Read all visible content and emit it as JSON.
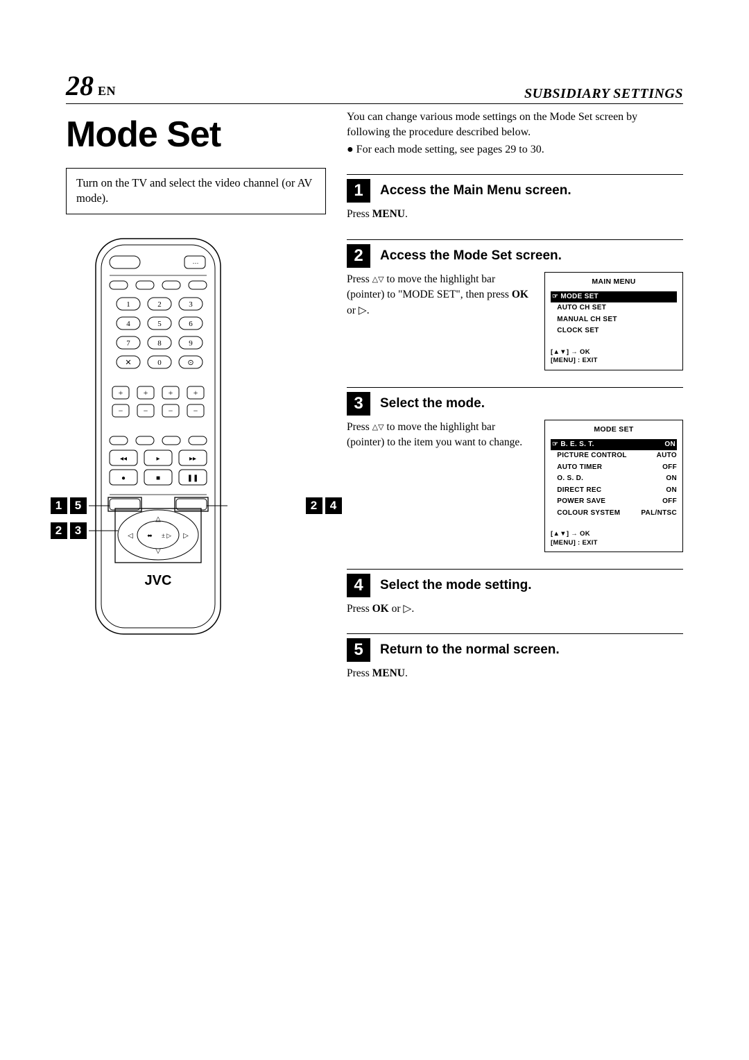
{
  "header": {
    "page_number": "28",
    "lang": "EN",
    "section": "SUBSIDIARY SETTINGS"
  },
  "title": "Mode Set",
  "note": "Turn on the TV and select the video channel (or AV mode).",
  "brand": "JVC",
  "remote": {
    "numpad": [
      "1",
      "2",
      "3",
      "4",
      "5",
      "6",
      "7",
      "8",
      "9",
      "✕",
      "0",
      "⊙"
    ],
    "plusminus": [
      "+",
      "+",
      "+",
      "+",
      "−",
      "−",
      "−",
      "−"
    ]
  },
  "callouts": {
    "left_top": [
      "1",
      "5"
    ],
    "left_bottom": [
      "2",
      "3"
    ],
    "right": [
      "2",
      "4"
    ]
  },
  "intro": {
    "line1": "You can change various mode settings on the Mode Set screen by following the procedure described below.",
    "bullet": "For each mode setting, see pages 29 to 30."
  },
  "steps": [
    {
      "num": "1",
      "title": "Access the Main Menu screen.",
      "body_before": "Press ",
      "body_bold": "MENU",
      "body_after": "."
    },
    {
      "num": "2",
      "title": "Access the Mode Set screen.",
      "text_parts": {
        "a": "Press ",
        "tri": "△▽",
        "b": " to move the highlight bar (pointer) to \"MODE SET\", then press ",
        "bold": "OK",
        "c": " or ▷."
      },
      "osd": {
        "title": "MAIN MENU",
        "rows": [
          {
            "label": "MODE SET",
            "value": "",
            "hl": true,
            "ptr": true
          },
          {
            "label": "AUTO CH SET",
            "value": ""
          },
          {
            "label": "MANUAL CH SET",
            "value": ""
          },
          {
            "label": "CLOCK SET",
            "value": ""
          }
        ],
        "footer": [
          "[▲▼] → OK",
          "[MENU] : EXIT"
        ]
      }
    },
    {
      "num": "3",
      "title": "Select the mode.",
      "text_parts": {
        "a": "Press ",
        "tri": "△▽",
        "b": " to move the highlight bar (pointer) to the item you want to change."
      },
      "osd": {
        "title": "MODE SET",
        "rows": [
          {
            "label": "B. E. S. T.",
            "value": "ON",
            "hl": true,
            "ptr": true
          },
          {
            "label": "PICTURE CONTROL",
            "value": "AUTO"
          },
          {
            "label": "AUTO TIMER",
            "value": "OFF"
          },
          {
            "label": "O. S. D.",
            "value": "ON"
          },
          {
            "label": "DIRECT REC",
            "value": "ON"
          },
          {
            "label": "POWER SAVE",
            "value": "OFF"
          },
          {
            "label": "COLOUR SYSTEM",
            "value": "PAL/NTSC"
          }
        ],
        "footer": [
          "[▲▼] → OK",
          "[MENU] : EXIT"
        ]
      }
    },
    {
      "num": "4",
      "title": "Select the mode setting.",
      "body_before": "Press ",
      "body_bold": "OK",
      "body_after": " or ▷."
    },
    {
      "num": "5",
      "title": "Return to the normal screen.",
      "body_before": "Press ",
      "body_bold": "MENU",
      "body_after": "."
    }
  ]
}
